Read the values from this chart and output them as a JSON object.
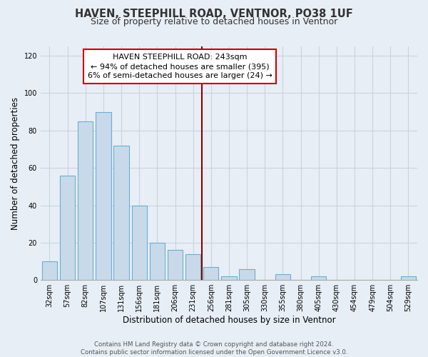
{
  "title": "HAVEN, STEEPHILL ROAD, VENTNOR, PO38 1UF",
  "subtitle": "Size of property relative to detached houses in Ventnor",
  "xlabel": "Distribution of detached houses by size in Ventnor",
  "ylabel": "Number of detached properties",
  "bar_labels": [
    "32sqm",
    "57sqm",
    "82sqm",
    "107sqm",
    "131sqm",
    "156sqm",
    "181sqm",
    "206sqm",
    "231sqm",
    "256sqm",
    "281sqm",
    "305sqm",
    "330sqm",
    "355sqm",
    "380sqm",
    "405sqm",
    "430sqm",
    "454sqm",
    "479sqm",
    "504sqm",
    "529sqm"
  ],
  "bar_values": [
    10,
    56,
    85,
    90,
    72,
    40,
    20,
    16,
    14,
    7,
    2,
    6,
    0,
    3,
    0,
    2,
    0,
    0,
    0,
    0,
    2
  ],
  "bar_color": "#c8daea",
  "bar_edge_color": "#6aadd5",
  "vline_x_index": 8.5,
  "annotation_text_lines": [
    "HAVEN STEEPHILL ROAD: 243sqm",
    "← 94% of detached houses are smaller (395)",
    "6% of semi-detached houses are larger (24) →"
  ],
  "vline_color": "#8b0000",
  "ylim": [
    0,
    125
  ],
  "yticks": [
    0,
    20,
    40,
    60,
    80,
    100,
    120
  ],
  "footer_line1": "Contains HM Land Registry data © Crown copyright and database right 2024.",
  "footer_line2": "Contains public sector information licensed under the Open Government Licence v3.0.",
  "bg_color": "#e8eef5",
  "grid_color": "#c8d4e0",
  "title_fontsize": 10.5,
  "subtitle_fontsize": 9,
  "tick_fontsize": 7,
  "ylabel_fontsize": 8.5,
  "xlabel_fontsize": 8.5,
  "annotation_fontsize": 8
}
